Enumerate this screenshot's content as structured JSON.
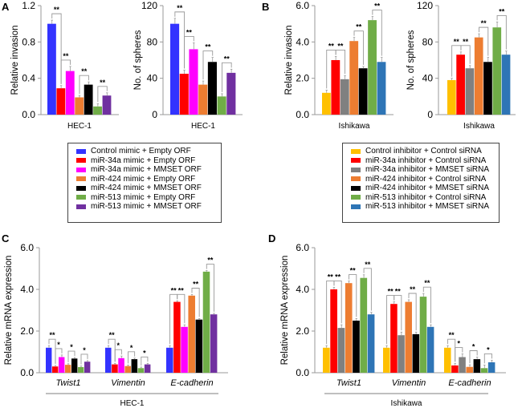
{
  "panels": {
    "A": "A",
    "B": "B",
    "C": "C",
    "D": "D"
  },
  "legends": {
    "hec1": [
      {
        "label": "Control mimic + Empty ORF",
        "color": "#3333ff"
      },
      {
        "label": "miR-34a mimic + Empty ORF",
        "color": "#ff0000"
      },
      {
        "label": "miR-34a mimic + MMSET ORF",
        "color": "#ff00ff"
      },
      {
        "label": "miR-424 mimic + Empty ORF",
        "color": "#ed7d31"
      },
      {
        "label": "miR-424 mimic + MMSET ORF",
        "color": "#000000"
      },
      {
        "label": "miR-513 mimic + Empty ORF",
        "color": "#70ad47"
      },
      {
        "label": "miR-513 mimic + MMSET ORF",
        "color": "#7030a0"
      }
    ],
    "ishikawa": [
      {
        "label": "Control inhibitor + Control siRNA",
        "color": "#ffc000"
      },
      {
        "label": "miR-34a inhibitor + Control siRNA",
        "color": "#ff0000"
      },
      {
        "label": "miR-34a inhibitor + MMSET siRNA",
        "color": "#808080"
      },
      {
        "label": "miR-424 inhibitor + Control siRNA",
        "color": "#ed7d31"
      },
      {
        "label": "miR-424 inhibitor + MMSET siRNA",
        "color": "#000000"
      },
      {
        "label": "miR-513 inhibitor + Control siRNA",
        "color": "#70ad47"
      },
      {
        "label": "miR-513 inhibitor + MMSET siRNA",
        "color": "#2e75b6"
      }
    ]
  },
  "chart_data": [
    {
      "id": "A-invasion",
      "panel": "A",
      "type": "bar",
      "ylabel": "Relative invasion",
      "xlabel": "HEC-1",
      "ylim": [
        0,
        1.2
      ],
      "yticks": [
        "0.0",
        "0.4",
        "0.8",
        "1.2"
      ],
      "ytick_values": [
        0,
        0.4,
        0.8,
        1.2
      ],
      "legend": "hec1",
      "series_values": [
        1.0,
        0.29,
        0.48,
        0.19,
        0.33,
        0.09,
        0.21
      ],
      "errors": [
        0.04,
        0.03,
        0.05,
        0.02,
        0.03,
        0.03,
        0.03
      ],
      "significance": [
        {
          "pair": [
            0,
            1
          ],
          "label": "**"
        },
        {
          "pair": [
            1,
            2
          ],
          "label": "**"
        },
        {
          "pair": [
            3,
            4
          ],
          "label": "**"
        },
        {
          "pair": [
            5,
            6
          ],
          "label": "**"
        }
      ]
    },
    {
      "id": "A-spheres",
      "panel": "A",
      "type": "bar",
      "ylabel": "No. of spheres",
      "xlabel": "HEC-1",
      "ylim": [
        0,
        120
      ],
      "yticks": [
        "0",
        "40",
        "80",
        "120"
      ],
      "ytick_values": [
        0,
        40,
        80,
        120
      ],
      "legend": "hec1",
      "series_values": [
        100,
        45,
        72,
        33,
        58,
        20,
        46
      ],
      "errors": [
        6,
        4,
        7,
        4,
        5,
        3,
        4
      ],
      "significance": [
        {
          "pair": [
            0,
            1
          ],
          "label": "**"
        },
        {
          "pair": [
            1,
            2
          ],
          "label": "**"
        },
        {
          "pair": [
            3,
            4
          ],
          "label": "**"
        },
        {
          "pair": [
            5,
            6
          ],
          "label": "**"
        }
      ]
    },
    {
      "id": "B-invasion",
      "panel": "B",
      "type": "bar",
      "ylabel": "Relative invasion",
      "xlabel": "Ishikawa",
      "ylim": [
        0,
        6
      ],
      "yticks": [
        "0.0",
        "2.0",
        "4.0",
        "6.0"
      ],
      "ytick_values": [
        0,
        2,
        4,
        6
      ],
      "legend": "ishikawa",
      "series_values": [
        1.2,
        3.0,
        1.95,
        4.05,
        2.55,
        5.2,
        2.9
      ],
      "errors": [
        0.15,
        0.2,
        0.2,
        0.2,
        0.1,
        0.2,
        0.25
      ],
      "significance": [
        {
          "pair": [
            0,
            1
          ],
          "label": "**"
        },
        {
          "pair": [
            1,
            2
          ],
          "label": "**"
        },
        {
          "pair": [
            3,
            4
          ],
          "label": "**"
        },
        {
          "pair": [
            5,
            6
          ],
          "label": "**"
        }
      ]
    },
    {
      "id": "B-spheres",
      "panel": "B",
      "type": "bar",
      "ylabel": "No. of spheres",
      "xlabel": "Ishikawa",
      "ylim": [
        0,
        120
      ],
      "yticks": [
        "0",
        "40",
        "80",
        "120"
      ],
      "ytick_values": [
        0,
        40,
        80,
        120
      ],
      "legend": "ishikawa",
      "series_values": [
        38,
        66,
        51,
        85,
        58,
        96,
        66
      ],
      "errors": [
        2,
        3,
        3,
        4,
        5,
        6,
        4
      ],
      "significance": [
        {
          "pair": [
            0,
            1
          ],
          "label": "**"
        },
        {
          "pair": [
            1,
            2
          ],
          "label": "**"
        },
        {
          "pair": [
            3,
            4
          ],
          "label": "**"
        },
        {
          "pair": [
            5,
            6
          ],
          "label": "**"
        }
      ]
    },
    {
      "id": "C-mrna",
      "panel": "C",
      "type": "bar",
      "ylabel": "Relative mRNA expression",
      "xlabel": "HEC-1",
      "ylim": [
        0,
        6
      ],
      "yticks": [
        "0.0",
        "2.0",
        "4.0",
        "6.0"
      ],
      "ytick_values": [
        0,
        2,
        4,
        6
      ],
      "legend": "hec1",
      "categories": [
        "Twist1",
        "Vimentin",
        "E-cadherin"
      ],
      "series": [
        {
          "name": "Control mimic + Empty ORF",
          "values": [
            1.2,
            1.2,
            1.2
          ]
        },
        {
          "name": "miR-34a mimic + Empty ORF",
          "values": [
            0.3,
            0.4,
            3.4
          ]
        },
        {
          "name": "miR-34a mimic + MMSET ORF",
          "values": [
            0.75,
            0.7,
            2.2
          ]
        },
        {
          "name": "miR-424 mimic + Empty ORF",
          "values": [
            0.38,
            0.32,
            3.7
          ]
        },
        {
          "name": "miR-424 mimic + MMSET ORF",
          "values": [
            0.68,
            0.65,
            2.55
          ]
        },
        {
          "name": "miR-513 mimic + Empty ORF",
          "values": [
            0.27,
            0.22,
            4.85
          ]
        },
        {
          "name": "miR-513 mimic + MMSET ORF",
          "values": [
            0.53,
            0.4,
            2.8
          ]
        }
      ],
      "errors": [
        0.1,
        0.05,
        0.1,
        0.05,
        0.05,
        0.05,
        0.05
      ],
      "significance": [
        [
          {
            "pair": [
              0,
              1
            ],
            "label": "**"
          },
          {
            "pair": [
              1,
              2
            ],
            "label": "*"
          },
          {
            "pair": [
              3,
              4
            ],
            "label": "*"
          },
          {
            "pair": [
              5,
              6
            ],
            "label": "*"
          }
        ],
        [
          {
            "pair": [
              0,
              1
            ],
            "label": "**"
          },
          {
            "pair": [
              1,
              2
            ],
            "label": "*"
          },
          {
            "pair": [
              3,
              4
            ],
            "label": "*"
          },
          {
            "pair": [
              5,
              6
            ],
            "label": "*"
          }
        ],
        [
          {
            "pair": [
              0,
              1
            ],
            "label": "**"
          },
          {
            "pair": [
              1,
              2
            ],
            "label": "**"
          },
          {
            "pair": [
              3,
              4
            ],
            "label": "**"
          },
          {
            "pair": [
              5,
              6
            ],
            "label": "**"
          }
        ]
      ]
    },
    {
      "id": "D-mrna",
      "panel": "D",
      "type": "bar",
      "ylabel": "Relative mRNA expression",
      "xlabel": "Ishikawa",
      "ylim": [
        0,
        6
      ],
      "yticks": [
        "0.0",
        "2.0",
        "4.0",
        "6.0"
      ],
      "ytick_values": [
        0,
        2,
        4,
        6
      ],
      "legend": "ishikawa",
      "categories": [
        "Twist1",
        "Vimentin",
        "E-cadherin"
      ],
      "series": [
        {
          "name": "Control inhibitor + Control siRNA",
          "values": [
            1.2,
            1.2,
            1.2
          ]
        },
        {
          "name": "miR-34a inhibitor + Control siRNA",
          "values": [
            4.0,
            3.3,
            0.35
          ]
        },
        {
          "name": "miR-34a inhibitor + MMSET siRNA",
          "values": [
            2.15,
            1.8,
            0.75
          ]
        },
        {
          "name": "miR-424 inhibitor + Control siRNA",
          "values": [
            4.3,
            3.4,
            0.28
          ]
        },
        {
          "name": "miR-424 inhibitor + MMSET siRNA",
          "values": [
            2.5,
            1.85,
            0.65
          ]
        },
        {
          "name": "miR-513 inhibitor + Control siRNA",
          "values": [
            4.55,
            3.65,
            0.22
          ]
        },
        {
          "name": "miR-513 inhibitor + MMSET siRNA",
          "values": [
            2.8,
            2.2,
            0.5
          ]
        }
      ],
      "errors": [
        0.1,
        0.1,
        0.15,
        0.1,
        0.1,
        0.15,
        0.1
      ],
      "significance": [
        [
          {
            "pair": [
              0,
              1
            ],
            "label": "**"
          },
          {
            "pair": [
              1,
              2
            ],
            "label": "**"
          },
          {
            "pair": [
              3,
              4
            ],
            "label": "**"
          },
          {
            "pair": [
              5,
              6
            ],
            "label": "**"
          }
        ],
        [
          {
            "pair": [
              0,
              1
            ],
            "label": "**"
          },
          {
            "pair": [
              1,
              2
            ],
            "label": "**"
          },
          {
            "pair": [
              3,
              4
            ],
            "label": "**"
          },
          {
            "pair": [
              5,
              6
            ],
            "label": "**"
          }
        ],
        [
          {
            "pair": [
              0,
              1
            ],
            "label": "**"
          },
          {
            "pair": [
              1,
              2
            ],
            "label": "*"
          },
          {
            "pair": [
              3,
              4
            ],
            "label": "*"
          },
          {
            "pair": [
              5,
              6
            ],
            "label": "*"
          }
        ]
      ]
    }
  ]
}
